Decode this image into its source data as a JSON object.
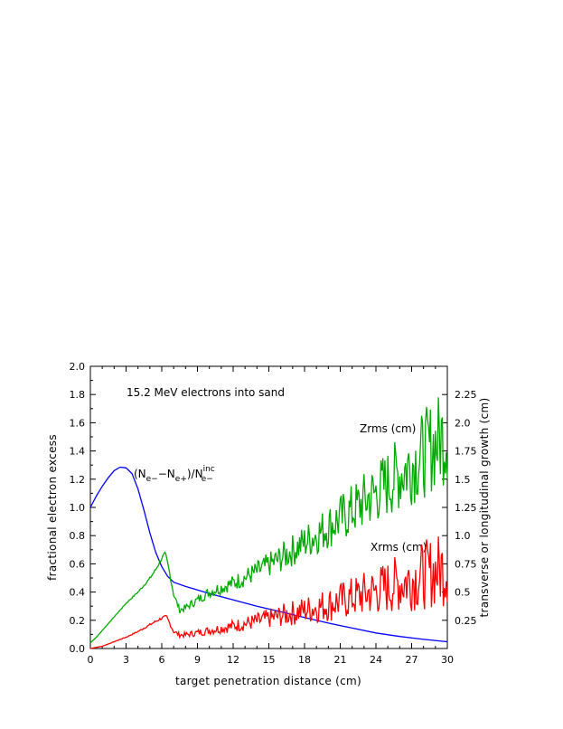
{
  "chart_data": {
    "type": "line",
    "title": "15.2 MeV electrons into sand",
    "xlabel": "target penetration distance (cm)",
    "ylabel_left": "fractional electron excess",
    "ylabel_right": "transverse or longitudinal growth (cm)",
    "xlim": [
      0,
      30
    ],
    "ylim_left": [
      0,
      2.0
    ],
    "ylim_right": [
      0,
      2.5
    ],
    "x_ticks": [
      0,
      3,
      6,
      9,
      12,
      15,
      18,
      21,
      24,
      27,
      30
    ],
    "y_ticks_left": [
      "0.0",
      "0.2",
      "0.4",
      "0.6",
      "0.8",
      "1.0",
      "1.2",
      "1.4",
      "1.6",
      "1.8",
      "2.0"
    ],
    "y_ticks_right": [
      "0.25",
      "0.5",
      "0.75",
      "1.0",
      "1.25",
      "1.5",
      "1.75",
      "2.0",
      "2.25"
    ],
    "grid": false,
    "annotations": {
      "excess_base": "(N",
      "excess_sub1": "e−",
      "excess_mid": "−N",
      "excess_sub2": "e+",
      "excess_slash": ")/N",
      "excess_sup": "inc",
      "excess_sub3": "e−",
      "zrms": "Zrms (cm)",
      "xrms": "Xrms (cm)"
    },
    "series": [
      {
        "axis": "left",
        "color": "#0000ff",
        "x": [
          0,
          0.5,
          1,
          1.5,
          2,
          2.5,
          3,
          3.5,
          4,
          4.5,
          5,
          5.5,
          6,
          6.5,
          7,
          8,
          9,
          10,
          12,
          14,
          16,
          18,
          20,
          22,
          24,
          26,
          28,
          30
        ],
        "y": [
          1.0,
          1.08,
          1.15,
          1.21,
          1.26,
          1.285,
          1.28,
          1.24,
          1.13,
          0.98,
          0.82,
          0.68,
          0.58,
          0.51,
          0.47,
          0.44,
          0.415,
          0.39,
          0.345,
          0.3,
          0.26,
          0.22,
          0.18,
          0.145,
          0.11,
          0.085,
          0.065,
          0.048
        ]
      },
      {
        "axis": "right",
        "color": "#00aa00",
        "x": [
          0,
          0.5,
          1,
          2,
          3,
          4,
          5,
          5.5,
          6,
          6.3,
          6.6,
          7,
          7.5,
          8,
          9,
          10,
          12,
          14,
          16,
          18,
          20,
          22,
          24,
          26,
          28,
          29,
          30
        ],
        "y": [
          0.05,
          0.1,
          0.16,
          0.28,
          0.4,
          0.5,
          0.62,
          0.7,
          0.8,
          0.84,
          0.7,
          0.48,
          0.34,
          0.36,
          0.43,
          0.5,
          0.58,
          0.68,
          0.8,
          0.94,
          1.08,
          1.22,
          1.38,
          1.55,
          1.72,
          1.82,
          1.9
        ]
      },
      {
        "axis": "right",
        "color": "#ff0000",
        "x": [
          0,
          1,
          2,
          3,
          4,
          5,
          6,
          6.4,
          7,
          7.5,
          8,
          9,
          10,
          12,
          14,
          16,
          18,
          20,
          22,
          24,
          26,
          28,
          30
        ],
        "y": [
          0.0,
          0.02,
          0.06,
          0.1,
          0.15,
          0.21,
          0.27,
          0.28,
          0.15,
          0.12,
          0.12,
          0.14,
          0.16,
          0.2,
          0.24,
          0.29,
          0.34,
          0.39,
          0.45,
          0.51,
          0.58,
          0.65,
          0.72
        ]
      }
    ]
  }
}
